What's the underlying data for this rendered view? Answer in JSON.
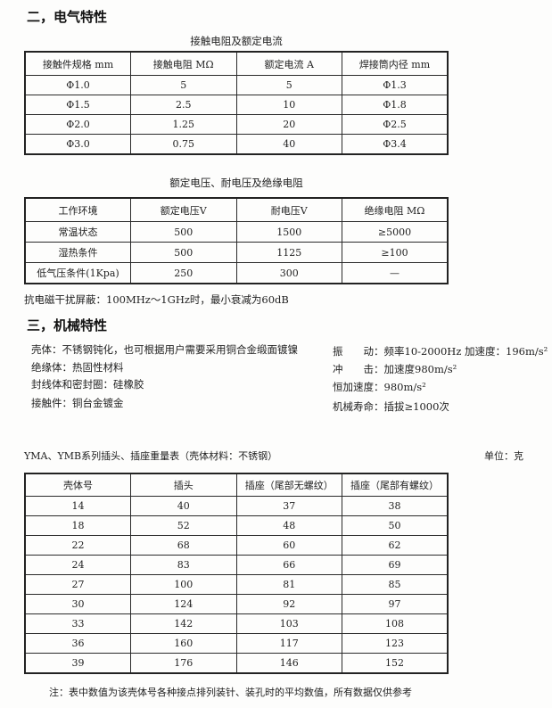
{
  "section_electrical": {
    "title": "二，电气特性",
    "table_contact": {
      "caption": "接触电阻及额定电流",
      "headers": [
        "接触件规格  mm",
        "接触电阻  MΩ",
        "额定电流  A",
        "焊接筒内径  mm"
      ],
      "rows": [
        [
          "Φ1.0",
          "5",
          "5",
          "Φ1.3"
        ],
        [
          "Φ1.5",
          "2.5",
          "10",
          "Φ1.8"
        ],
        [
          "Φ2.0",
          "1.25",
          "20",
          "Φ2.5"
        ],
        [
          "Φ3.0",
          "0.75",
          "40",
          "Φ3.4"
        ]
      ]
    },
    "table_voltage": {
      "caption": "额定电压、耐电压及绝缘电阻",
      "headers": [
        "工作环境",
        "额定电压V",
        "耐电压V",
        "绝缘电阻 MΩ"
      ],
      "rows": [
        [
          "常温状态",
          "500",
          "1500",
          "≥5000"
        ],
        [
          "湿热条件",
          "500",
          "1125",
          "≥100"
        ],
        [
          "低气压条件(1Kpa)",
          "250",
          "300",
          "—"
        ]
      ]
    },
    "emi_note": "抗电磁干扰屏蔽：100MHz～1GHz时，最小衰减为60dB"
  },
  "section_mechanical": {
    "title": "三，机械特性",
    "left_lines": [
      "壳体：不锈钢钝化，也可根据用户需要采用铜合金缎面镀镍",
      "绝缘体：热固性材料",
      "封线体和密封圈：硅橡胶",
      "接触件：铜台金镀金"
    ],
    "right_lines": [
      "振　　动：频率10-2000Hz 加速度：196m/s²",
      "冲　　击：加速度980m/s²",
      "恒加速度：980m/s²",
      "机械寿命：插拔≥1000次"
    ]
  },
  "weight_table": {
    "caption_left": "YMA、YMB系列插头、插座重量表（壳体材料：不锈钢）",
    "caption_right": "单位：克",
    "headers": [
      "壳体号",
      "插头",
      "插座（尾部无螺纹）",
      "插座（尾部有螺纹）"
    ],
    "rows": [
      [
        "14",
        "40",
        "37",
        "38"
      ],
      [
        "18",
        "52",
        "48",
        "50"
      ],
      [
        "22",
        "68",
        "60",
        "62"
      ],
      [
        "24",
        "83",
        "66",
        "69"
      ],
      [
        "27",
        "100",
        "81",
        "85"
      ],
      [
        "30",
        "124",
        "92",
        "97"
      ],
      [
        "33",
        "142",
        "103",
        "108"
      ],
      [
        "36",
        "160",
        "117",
        "123"
      ],
      [
        "39",
        "176",
        "146",
        "152"
      ]
    ]
  },
  "footnote": "注：表中数值为该壳体号各种接点排列装针、装孔时的平均数值，所有数据仅供参考"
}
